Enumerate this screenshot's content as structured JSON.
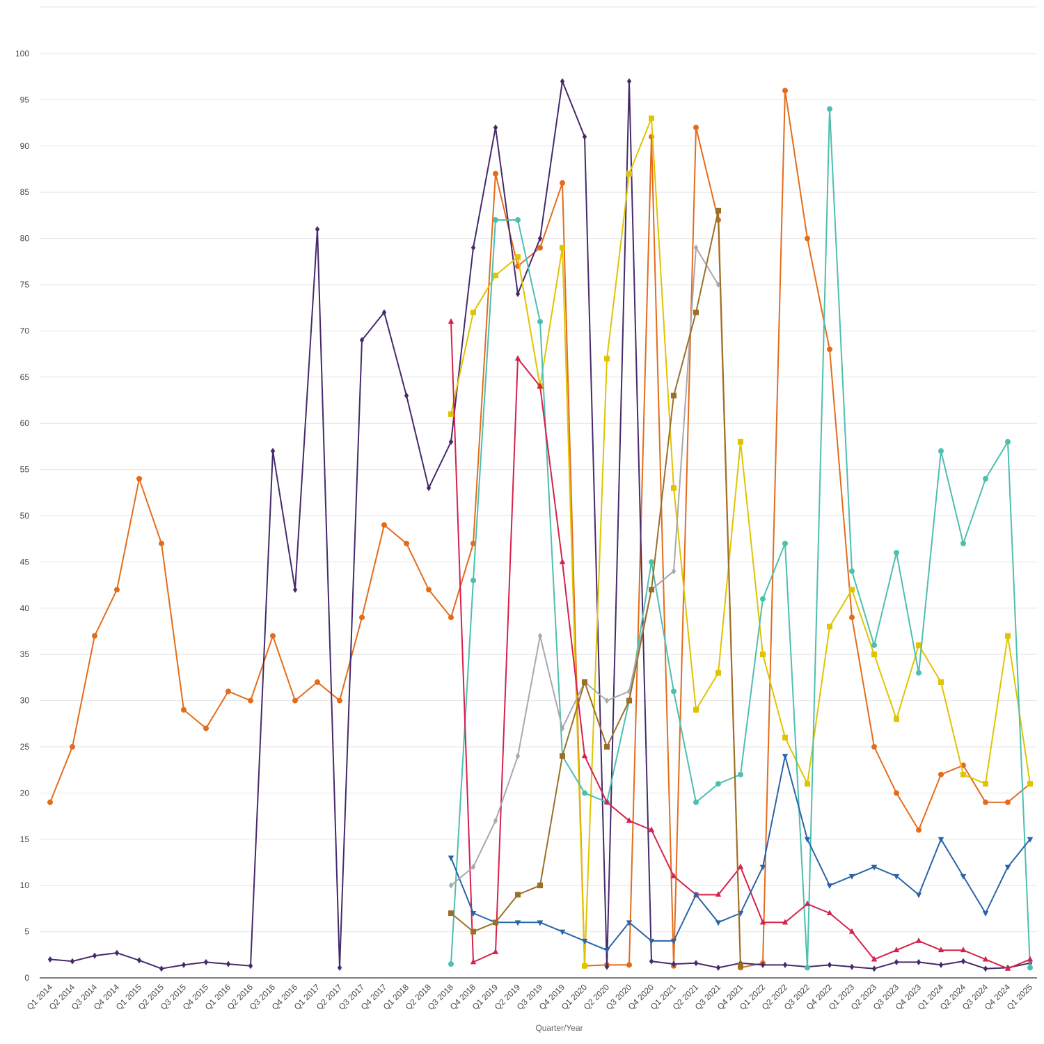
{
  "chart_data": {
    "type": "line",
    "title": "",
    "xlabel": "Quarter/Year",
    "ylabel": "",
    "ylim": [
      0,
      100
    ],
    "yticks": [
      0,
      5,
      10,
      15,
      20,
      25,
      30,
      35,
      40,
      45,
      50,
      55,
      60,
      65,
      70,
      75,
      80,
      85,
      90,
      95,
      100
    ],
    "grid": true,
    "legend": "none",
    "categories": [
      "Q1 2014",
      "Q2 2014",
      "Q3 2014",
      "Q4 2014",
      "Q1 2015",
      "Q2 2015",
      "Q3 2015",
      "Q4 2015",
      "Q1 2016",
      "Q2 2016",
      "Q3 2016",
      "Q4 2016",
      "Q1 2017",
      "Q2 2017",
      "Q3 2017",
      "Q4 2017",
      "Q1 2018",
      "Q2 2018",
      "Q3 2018",
      "Q4 2018",
      "Q1 2019",
      "Q2 2019",
      "Q3 2019",
      "Q4 2019",
      "Q1 2020",
      "Q2 2020",
      "Q3 2020",
      "Q4 2020",
      "Q1 2021",
      "Q2 2021",
      "Q3 2021",
      "Q4 2021",
      "Q1 2022",
      "Q2 2022",
      "Q3 2022",
      "Q4 2022",
      "Q1 2023",
      "Q2 2023",
      "Q3 2023",
      "Q4 2023",
      "Q1 2024",
      "Q2 2024",
      "Q3 2024",
      "Q4 2024",
      "Q1 2025"
    ],
    "series": [
      {
        "color": "#e36c1c",
        "marker": "circle",
        "values": [
          19,
          25,
          37,
          42,
          54,
          47,
          29,
          27,
          31,
          30,
          37,
          30,
          32,
          30,
          39,
          49,
          47,
          42,
          39,
          47,
          87,
          77,
          79,
          86,
          1.3,
          1.4,
          1.4,
          91,
          1.3,
          92,
          82,
          1.1,
          1.6,
          96,
          80,
          68,
          39,
          25,
          20,
          16,
          22,
          23,
          19,
          19,
          21
        ]
      },
      {
        "color": "#452a6b",
        "marker": "diamond",
        "values": [
          2,
          1.8,
          2.4,
          2.7,
          1.9,
          1,
          1.4,
          1.7,
          1.5,
          1.3,
          57,
          42,
          81,
          1.1,
          69,
          72,
          63,
          53,
          58,
          79,
          92,
          74,
          80,
          97,
          91,
          1.2,
          97,
          1.8,
          1.5,
          1.6,
          1.1,
          1.6,
          1.4,
          1.4,
          1.2,
          1.4,
          1.2,
          1,
          1.7,
          1.7,
          1.4,
          1.8,
          1,
          1.1,
          1.6
        ]
      },
      {
        "color": "#e0c400",
        "marker": "square",
        "values": [
          null,
          null,
          null,
          null,
          null,
          null,
          null,
          null,
          null,
          null,
          null,
          null,
          null,
          null,
          null,
          null,
          null,
          null,
          61,
          72,
          76,
          78,
          64,
          79,
          1.3,
          67,
          87,
          93,
          53,
          29,
          33,
          58,
          35,
          26,
          21,
          38,
          42,
          35,
          28,
          36,
          32,
          22,
          21,
          37,
          21
        ]
      },
      {
        "color": "#4dbfaf",
        "marker": "circle",
        "values": [
          null,
          null,
          null,
          null,
          null,
          null,
          null,
          null,
          null,
          null,
          null,
          null,
          null,
          null,
          null,
          null,
          null,
          null,
          1.5,
          43,
          82,
          82,
          71,
          24,
          20,
          19,
          30,
          45,
          31,
          19,
          21,
          22,
          41,
          47,
          1.1,
          94,
          44,
          36,
          46,
          33,
          57,
          47,
          54,
          58,
          1.1
        ]
      },
      {
        "color": "#d6204d",
        "marker": "triangle",
        "values": [
          null,
          null,
          null,
          null,
          null,
          null,
          null,
          null,
          null,
          null,
          null,
          null,
          null,
          null,
          null,
          null,
          null,
          null,
          71,
          1.7,
          2.8,
          67,
          64,
          45,
          24,
          19,
          17,
          16,
          11,
          9,
          9,
          12,
          6,
          6,
          8,
          7,
          5,
          2,
          3,
          4,
          3,
          3,
          2,
          1,
          2
        ]
      },
      {
        "color": "#2a63a8",
        "marker": "triangle-down",
        "values": [
          null,
          null,
          null,
          null,
          null,
          null,
          null,
          null,
          null,
          null,
          null,
          null,
          null,
          null,
          null,
          null,
          null,
          null,
          13,
          7,
          6,
          6,
          6,
          5,
          4,
          3,
          6,
          4,
          4,
          9,
          6,
          7,
          12,
          24,
          15,
          10,
          11,
          12,
          11,
          9,
          15,
          11,
          7,
          12,
          15
        ]
      },
      {
        "color": "#a8a8ad",
        "marker": "diamond",
        "values": [
          null,
          null,
          null,
          null,
          null,
          null,
          null,
          null,
          null,
          null,
          null,
          null,
          null,
          null,
          null,
          null,
          null,
          null,
          10,
          12,
          17,
          24,
          37,
          27,
          32,
          30,
          31,
          42,
          44,
          79,
          75,
          null,
          null,
          null,
          null,
          null,
          null,
          null,
          null,
          null,
          null,
          null,
          null,
          null,
          null
        ]
      },
      {
        "color": "#9a7028",
        "marker": "square",
        "values": [
          null,
          null,
          null,
          null,
          null,
          null,
          null,
          null,
          null,
          null,
          null,
          null,
          null,
          null,
          null,
          null,
          null,
          null,
          7,
          5,
          6,
          9,
          10,
          24,
          32,
          25,
          30,
          42,
          63,
          72,
          83,
          1.3,
          null,
          null,
          null,
          null,
          null,
          null,
          null,
          null,
          null,
          null,
          null,
          null,
          null
        ]
      }
    ]
  }
}
